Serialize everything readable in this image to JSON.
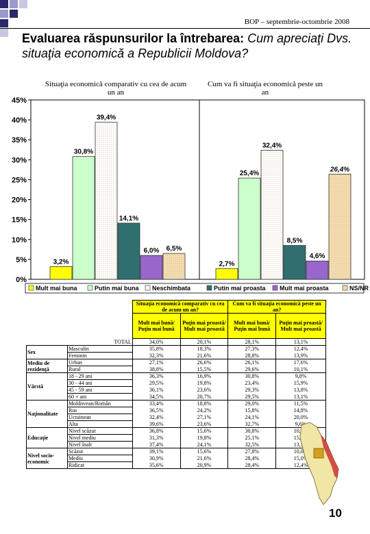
{
  "header": {
    "text": "BOP – septembrie-octombrie 2008"
  },
  "title": {
    "part1": "Evaluarea răspunsurilor la întrebarea: ",
    "part2": "Cum apreciaţi Dvs. situaţia economică a Republicii Moldova?"
  },
  "page_number": "10",
  "chart_data": {
    "type": "bar",
    "ylim": [
      0,
      45
    ],
    "yticks": [
      "0%",
      "5%",
      "10%",
      "15%",
      "20%",
      "25%",
      "30%",
      "35%",
      "40%",
      "45%"
    ],
    "groups": [
      {
        "title": "Situaţia economică comparativ cu cea de acum un an"
      },
      {
        "title": "Cum va fi situaţia economică peste un an"
      }
    ],
    "series": [
      {
        "name": "Mult mai buna",
        "color": "#ffff00",
        "values": [
          3.2,
          2.7
        ],
        "labels": [
          "3,2%",
          "2,7%"
        ]
      },
      {
        "name": "Putin mai buna",
        "color": "#ccffcc",
        "values": [
          30.8,
          25.4
        ],
        "labels": [
          "30,8%",
          "25,4%"
        ]
      },
      {
        "name": "Neschimbata",
        "color": "#ffffff",
        "values": [
          39.4,
          32.4
        ],
        "labels": [
          "39,4%",
          "32,4%"
        ]
      },
      {
        "name": "Putin mai proasta",
        "color": "#2f6f6f",
        "values": [
          14.1,
          8.5
        ],
        "labels": [
          "14,1%",
          "8,5%"
        ]
      },
      {
        "name": "Mult mai proasta",
        "color": "#9966cc",
        "values": [
          6.0,
          4.6
        ],
        "labels": [
          "6,0%",
          "4,6%"
        ]
      },
      {
        "name": "NS/NR",
        "color": "#f5deb3",
        "values": [
          6.5,
          26.4
        ],
        "labels": [
          "6,5%",
          "26,4%"
        ]
      }
    ]
  },
  "table": {
    "group_headers": [
      "Situaţia economică comparativ cu cea de acum un an?",
      "Cum va fi situaţia economică peste un an?"
    ],
    "col_headers": [
      "Mult mai bună/ Puţin mai bună",
      "Puţin mai proastă/ Mult mai proastă",
      "Mult mai bună/ Puţin mai bună",
      "Puţin mai proastă/ Mult mai proastă"
    ],
    "total": {
      "label": "TOTAL",
      "values": [
        "34,0%",
        "20,1%",
        "28,1%",
        "13,1%"
      ]
    },
    "groups": [
      {
        "name": "Sex",
        "rows": [
          {
            "label": "Masculin",
            "values": [
              "35,8%",
              "18,3%",
              "27,3%",
              "12,4%"
            ]
          },
          {
            "label": "Feminin",
            "values": [
              "32,3%",
              "21,6%",
              "28,8%",
              "13,9%"
            ]
          }
        ]
      },
      {
        "name": "Mediu de rezidenţă",
        "rows": [
          {
            "label": "Urban",
            "values": [
              "27,1%",
              "26,6%",
              "26,1%",
              "17,6%"
            ]
          },
          {
            "label": "Rural",
            "values": [
              "38,8%",
              "15,5%",
              "29,6%",
              "10,1%"
            ]
          }
        ]
      },
      {
        "name": "Vârstă",
        "rows": [
          {
            "label": "18 - 29 ani",
            "values": [
              "36,3%",
              "16,9%",
              "30,8%",
              "9,8%"
            ]
          },
          {
            "label": "30 - 44 ani",
            "values": [
              "29,5%",
              "19,8%",
              "23,4%",
              "15,9%"
            ]
          },
          {
            "label": "45 - 59 ani",
            "values": [
              "36,1%",
              "23,6%",
              "29,3%",
              "13,8%"
            ]
          },
          {
            "label": "60 + ani",
            "values": [
              "34,5%",
              "20,7%",
              "29,5%",
              "13,1%"
            ]
          }
        ]
      },
      {
        "name": "Naţionalitate",
        "rows": [
          {
            "label": "Moldovean/Român",
            "values": [
              "33,4%",
              "18,8%",
              "29,0%",
              "11,5%"
            ]
          },
          {
            "label": "Rus",
            "values": [
              "36,5%",
              "24,2%",
              "15,8%",
              "14,8%"
            ]
          },
          {
            "label": "Ucrainean",
            "values": [
              "32,4%",
              "27,1%",
              "24,1%",
              "20,0%"
            ]
          },
          {
            "label": "Alta",
            "values": [
              "39,6%",
              "23,6%",
              "32,7%",
              "9,6%"
            ]
          }
        ]
      },
      {
        "name": "Educaţie",
        "rows": [
          {
            "label": "Nivel scăzut",
            "values": [
              "36,8%",
              "15,6%",
              "30,8%",
              "10,6%"
            ]
          },
          {
            "label": "Nivel mediu",
            "values": [
              "31,3%",
              "19,8%",
              "25,1%",
              "15,1%"
            ]
          },
          {
            "label": "Nivel înalt",
            "values": [
              "37,4%",
              "24,1%",
              "32,5%",
              "13,5%"
            ]
          }
        ]
      },
      {
        "name": "Nivel socio-economic",
        "rows": [
          {
            "label": "Scăzut",
            "values": [
              "39,1%",
              "15,6%",
              "27,8%",
              "10,0%"
            ]
          },
          {
            "label": "Mediu",
            "values": [
              "30,9%",
              "21,6%",
              "28,4%",
              "15,0%"
            ]
          },
          {
            "label": "Ridicat",
            "values": [
              "35,6%",
              "20,9%",
              "28,4%",
              "12,4%"
            ]
          }
        ]
      }
    ]
  }
}
